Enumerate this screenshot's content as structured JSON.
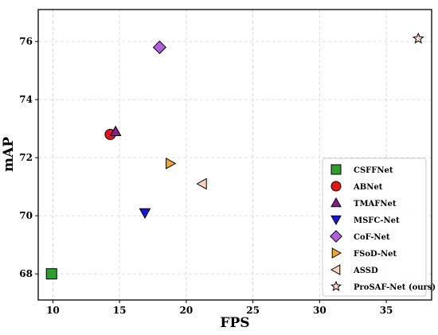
{
  "chart_data": {
    "type": "scatter",
    "xlabel": "FPS",
    "ylabel": "mAP",
    "xlim": [
      8.9,
      38.4
    ],
    "ylim": [
      67.1,
      77.1
    ],
    "xticks": [
      10,
      15,
      20,
      25,
      30,
      35
    ],
    "yticks": [
      68,
      70,
      72,
      74,
      76
    ],
    "grid": true,
    "legend_position": "lower-right",
    "series": [
      {
        "name": "CSFFNet",
        "marker": "square",
        "color": "#2ca02c",
        "x": 9.9,
        "y": 68.0
      },
      {
        "name": "ABNet",
        "marker": "circle",
        "color": "#ee1111",
        "x": 14.3,
        "y": 72.8
      },
      {
        "name": "TMAFNet",
        "marker": "triangle-up",
        "color": "#8b1a8b",
        "x": 14.7,
        "y": 72.9
      },
      {
        "name": "MSFC-Net",
        "marker": "triangle-down",
        "color": "#1515ee",
        "x": 16.9,
        "y": 70.1
      },
      {
        "name": "CoF-Net",
        "marker": "diamond",
        "color": "#b35ee0",
        "x": 18.0,
        "y": 75.8
      },
      {
        "name": "FSoD-Net",
        "marker": "triangle-right",
        "color": "#f5a623",
        "x": 18.8,
        "y": 71.8
      },
      {
        "name": "ASSD",
        "marker": "triangle-left",
        "color": "#fad3bd",
        "x": 21.2,
        "y": 71.1
      },
      {
        "name": "ProSAF-Net (ours)",
        "marker": "star",
        "color": "#fad3d3",
        "x": 37.4,
        "y": 76.1
      }
    ]
  }
}
